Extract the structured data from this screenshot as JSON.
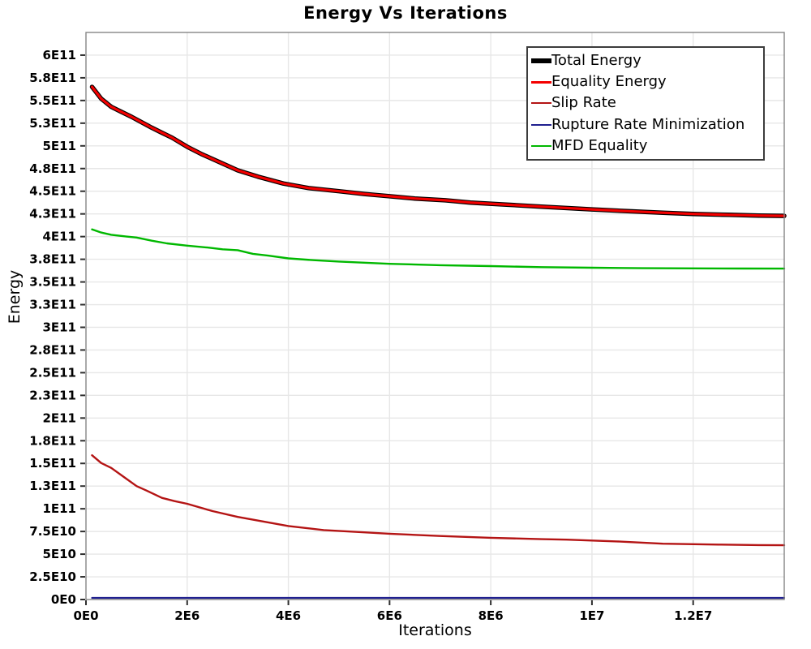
{
  "chart_data": {
    "type": "line",
    "title": "Energy Vs Iterations",
    "xlabel": "Iterations",
    "ylabel": "Energy",
    "xlim": [
      0,
      13800000
    ],
    "ylim": [
      0,
      625000000000.0
    ],
    "grid": true,
    "legend_position": "top-right",
    "colors": {
      "grid": "#e7e7e7",
      "border": "#858585",
      "tick": "#2e2e2e",
      "text": "#000000",
      "background": "#ffffff"
    },
    "x_ticks": [
      {
        "v": 0,
        "label": "0E0"
      },
      {
        "v": 2000000,
        "label": "2E6"
      },
      {
        "v": 4000000,
        "label": "4E6"
      },
      {
        "v": 6000000,
        "label": "6E6"
      },
      {
        "v": 8000000,
        "label": "8E6"
      },
      {
        "v": 10000000,
        "label": "1E7"
      },
      {
        "v": 12000000,
        "label": "1.2E7"
      }
    ],
    "y_ticks": [
      {
        "v": 0,
        "label": "0E0"
      },
      {
        "v": 25000000000.0,
        "label": "2.5E10"
      },
      {
        "v": 50000000000.0,
        "label": "5E10"
      },
      {
        "v": 75000000000.0,
        "label": "7.5E10"
      },
      {
        "v": 100000000000.0,
        "label": "1E11"
      },
      {
        "v": 125000000000.0,
        "label": "1.3E11"
      },
      {
        "v": 150000000000.0,
        "label": "1.5E11"
      },
      {
        "v": 175000000000.0,
        "label": "1.8E11"
      },
      {
        "v": 200000000000.0,
        "label": "2E11"
      },
      {
        "v": 225000000000.0,
        "label": "2.3E11"
      },
      {
        "v": 250000000000.0,
        "label": "2.5E11"
      },
      {
        "v": 275000000000.0,
        "label": "2.8E11"
      },
      {
        "v": 300000000000.0,
        "label": "3E11"
      },
      {
        "v": 325000000000.0,
        "label": "3.3E11"
      },
      {
        "v": 350000000000.0,
        "label": "3.5E11"
      },
      {
        "v": 375000000000.0,
        "label": "3.8E11"
      },
      {
        "v": 400000000000.0,
        "label": "4E11"
      },
      {
        "v": 425000000000.0,
        "label": "4.3E11"
      },
      {
        "v": 450000000000.0,
        "label": "4.5E11"
      },
      {
        "v": 475000000000.0,
        "label": "4.8E11"
      },
      {
        "v": 500000000000.0,
        "label": "5E11"
      },
      {
        "v": 525000000000.0,
        "label": "5.3E11"
      },
      {
        "v": 550000000000.0,
        "label": "5.5E11"
      },
      {
        "v": 575000000000.0,
        "label": "5.8E11"
      },
      {
        "v": 600000000000.0,
        "label": "6E11"
      }
    ],
    "series": [
      {
        "name": "Total Energy",
        "color": "#000000",
        "width": 5.5,
        "points": [
          [
            120000,
            565000000000.0
          ],
          [
            300000,
            552000000000.0
          ],
          [
            500000,
            543000000000.0
          ],
          [
            700000,
            537500000000.0
          ],
          [
            900000,
            532000000000.0
          ],
          [
            1100000,
            526000000000.0
          ],
          [
            1300000,
            520000000000.0
          ],
          [
            1500000,
            514500000000.0
          ],
          [
            1700000,
            509000000000.0
          ],
          [
            2000000,
            499000000000.0
          ],
          [
            2300000,
            490500000000.0
          ],
          [
            2600000,
            483000000000.0
          ],
          [
            3000000,
            473000000000.0
          ],
          [
            3400000,
            466000000000.0
          ],
          [
            3900000,
            458500000000.0
          ],
          [
            4400000,
            453500000000.0
          ],
          [
            5000000,
            450000000000.0
          ],
          [
            5500000,
            447000000000.0
          ],
          [
            6000000,
            444500000000.0
          ],
          [
            6500000,
            442000000000.0
          ],
          [
            7100000,
            440000000000.0
          ],
          [
            7600000,
            437500000000.0
          ],
          [
            8200000,
            435500000000.0
          ],
          [
            9000000,
            433000000000.0
          ],
          [
            10000000,
            430000000000.0
          ],
          [
            10700000,
            428000000000.0
          ],
          [
            11400000,
            426300000000.0
          ],
          [
            12000000,
            425000000000.0
          ],
          [
            12700000,
            424000000000.0
          ],
          [
            13300000,
            423200000000.0
          ],
          [
            13800000,
            422800000000.0
          ]
        ]
      },
      {
        "name": "Equality Energy",
        "color": "#f40000",
        "width": 3.2,
        "points": [
          [
            120000,
            565000000000.0
          ],
          [
            300000,
            552000000000.0
          ],
          [
            500000,
            543000000000.0
          ],
          [
            700000,
            537500000000.0
          ],
          [
            900000,
            532000000000.0
          ],
          [
            1100000,
            526000000000.0
          ],
          [
            1300000,
            520000000000.0
          ],
          [
            1500000,
            514500000000.0
          ],
          [
            1700000,
            509000000000.0
          ],
          [
            2000000,
            499000000000.0
          ],
          [
            2300000,
            490500000000.0
          ],
          [
            2600000,
            483000000000.0
          ],
          [
            3000000,
            473000000000.0
          ],
          [
            3400000,
            466000000000.0
          ],
          [
            3900000,
            458500000000.0
          ],
          [
            4400000,
            453500000000.0
          ],
          [
            5000000,
            450000000000.0
          ],
          [
            5500000,
            447000000000.0
          ],
          [
            6000000,
            444500000000.0
          ],
          [
            6500000,
            442000000000.0
          ],
          [
            7100000,
            440000000000.0
          ],
          [
            7600000,
            437500000000.0
          ],
          [
            8200000,
            435500000000.0
          ],
          [
            9000000,
            433000000000.0
          ],
          [
            10000000,
            430000000000.0
          ],
          [
            10700000,
            428000000000.0
          ],
          [
            11400000,
            426300000000.0
          ],
          [
            12000000,
            425000000000.0
          ],
          [
            12700000,
            424000000000.0
          ],
          [
            13300000,
            423200000000.0
          ],
          [
            13800000,
            422800000000.0
          ]
        ]
      },
      {
        "name": "Slip Rate",
        "color": "#b41414",
        "width": 2.4,
        "points": [
          [
            120000,
            159000000000.0
          ],
          [
            300000,
            150500000000.0
          ],
          [
            500000,
            145000000000.0
          ],
          [
            750000,
            135000000000.0
          ],
          [
            1000000,
            125000000000.0
          ],
          [
            1200000,
            120000000000.0
          ],
          [
            1500000,
            112000000000.0
          ],
          [
            1750000,
            108500000000.0
          ],
          [
            2000000,
            105500000000.0
          ],
          [
            2500000,
            97500000000.0
          ],
          [
            3000000,
            91000000000.0
          ],
          [
            3500000,
            86000000000.0
          ],
          [
            4000000,
            81000000000.0
          ],
          [
            4700000,
            76500000000.0
          ],
          [
            5500000,
            74000000000.0
          ],
          [
            6000000,
            72500000000.0
          ],
          [
            7000000,
            70000000000.0
          ],
          [
            8000000,
            68000000000.0
          ],
          [
            9000000,
            66500000000.0
          ],
          [
            9500000,
            66000000000.0
          ],
          [
            10500000,
            64000000000.0
          ],
          [
            11400000,
            61500000000.0
          ],
          [
            12500000,
            60500000000.0
          ],
          [
            13300000,
            60000000000.0
          ],
          [
            13800000,
            59800000000.0
          ]
        ]
      },
      {
        "name": "Rupture Rate Minimization",
        "color": "#20208f",
        "width": 2.2,
        "points": [
          [
            120000,
            1800000000.0
          ],
          [
            13800000,
            1800000000.0
          ]
        ]
      },
      {
        "name": "MFD Equality",
        "color": "#00b800",
        "width": 2.4,
        "points": [
          [
            120000,
            408000000000.0
          ],
          [
            300000,
            404500000000.0
          ],
          [
            500000,
            402000000000.0
          ],
          [
            800000,
            400000000000.0
          ],
          [
            1000000,
            399000000000.0
          ],
          [
            1300000,
            395500000000.0
          ],
          [
            1600000,
            392500000000.0
          ],
          [
            2000000,
            390000000000.0
          ],
          [
            2400000,
            388000000000.0
          ],
          [
            2700000,
            386000000000.0
          ],
          [
            3000000,
            385000000000.0
          ],
          [
            3300000,
            381000000000.0
          ],
          [
            3600000,
            379000000000.0
          ],
          [
            4000000,
            376000000000.0
          ],
          [
            4500000,
            374000000000.0
          ],
          [
            5000000,
            372500000000.0
          ],
          [
            6000000,
            370000000000.0
          ],
          [
            7000000,
            368500000000.0
          ],
          [
            8000000,
            367500000000.0
          ],
          [
            9000000,
            366300000000.0
          ],
          [
            10000000,
            365700000000.0
          ],
          [
            11000000,
            365200000000.0
          ],
          [
            12000000,
            365000000000.0
          ],
          [
            13000000,
            364800000000.0
          ],
          [
            13800000,
            364700000000.0
          ]
        ]
      }
    ]
  }
}
